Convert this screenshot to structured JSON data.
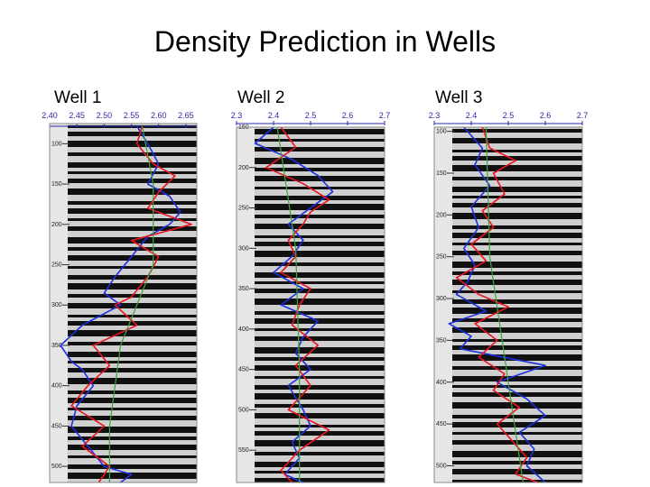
{
  "title": "Density Prediction in Wells",
  "colors": {
    "blue": "#1a2fe0",
    "red": "#e8141e",
    "green": "#3aa83a",
    "stripe_dark": "#111111",
    "stripe_light": "#cfcfcf",
    "axis": "#2a2aa8"
  },
  "chart_data": [
    {
      "type": "line",
      "title": "Well 1",
      "x_ticks": [
        "2.40",
        "2.45",
        "2.50",
        "2.55",
        "2.60",
        "2.65"
      ],
      "xlim": [
        2.4,
        2.67
      ],
      "depth_ticks": [
        "100",
        "150",
        "200",
        "250",
        "300",
        "350",
        "400",
        "450",
        "500"
      ],
      "ylim": [
        75,
        520
      ],
      "series": [
        {
          "color": "blue",
          "depth": [
            78,
            100,
            125,
            150,
            165,
            185,
            200,
            215,
            240,
            265,
            285,
            300,
            325,
            350,
            370,
            380,
            400,
            425,
            450,
            475,
            500,
            510,
            520
          ],
          "values": [
            2.56,
            2.58,
            2.6,
            2.58,
            2.62,
            2.64,
            2.62,
            2.58,
            2.55,
            2.52,
            2.5,
            2.53,
            2.46,
            2.42,
            2.44,
            2.46,
            2.48,
            2.45,
            2.44,
            2.47,
            2.5,
            2.55,
            2.53
          ]
        },
        {
          "color": "red",
          "depth": [
            78,
            100,
            125,
            140,
            160,
            180,
            200,
            220,
            240,
            265,
            290,
            300,
            325,
            350,
            375,
            400,
            425,
            450,
            475,
            500,
            520
          ],
          "values": [
            2.57,
            2.56,
            2.59,
            2.63,
            2.6,
            2.58,
            2.66,
            2.55,
            2.6,
            2.58,
            2.55,
            2.52,
            2.56,
            2.48,
            2.51,
            2.47,
            2.44,
            2.5,
            2.46,
            2.51,
            2.49
          ]
        },
        {
          "color": "green",
          "depth": [
            78,
            150,
            250,
            350,
            450,
            520
          ],
          "values": [
            2.57,
            2.59,
            2.59,
            2.53,
            2.51,
            2.51
          ]
        }
      ]
    },
    {
      "type": "line",
      "title": "Well 2",
      "x_ticks": [
        "2.3",
        "2.4",
        "2.5",
        "2.6",
        "2.7"
      ],
      "xlim": [
        2.3,
        2.7
      ],
      "depth_ticks": [
        "150",
        "200",
        "250",
        "300",
        "350",
        "400",
        "450",
        "500",
        "550"
      ],
      "ylim": [
        150,
        590
      ],
      "series": [
        {
          "color": "blue",
          "depth": [
            150,
            170,
            190,
            210,
            230,
            250,
            270,
            290,
            310,
            330,
            350,
            370,
            390,
            410,
            430,
            450,
            470,
            500,
            520,
            540,
            560,
            580,
            590
          ],
          "values": [
            2.4,
            2.35,
            2.45,
            2.52,
            2.56,
            2.5,
            2.44,
            2.48,
            2.45,
            2.4,
            2.48,
            2.42,
            2.52,
            2.48,
            2.46,
            2.5,
            2.44,
            2.48,
            2.5,
            2.45,
            2.47,
            2.43,
            2.48
          ]
        },
        {
          "color": "red",
          "depth": [
            150,
            175,
            200,
            220,
            240,
            255,
            270,
            290,
            310,
            330,
            350,
            370,
            395,
            420,
            445,
            470,
            500,
            525,
            550,
            575,
            590
          ],
          "values": [
            2.42,
            2.46,
            2.38,
            2.48,
            2.55,
            2.5,
            2.48,
            2.44,
            2.46,
            2.42,
            2.5,
            2.47,
            2.45,
            2.52,
            2.46,
            2.5,
            2.44,
            2.55,
            2.47,
            2.42,
            2.45
          ]
        },
        {
          "color": "green",
          "depth": [
            150,
            300,
            450,
            590
          ],
          "values": [
            2.41,
            2.46,
            2.47,
            2.47
          ]
        }
      ]
    },
    {
      "type": "line",
      "title": "Well 3",
      "x_ticks": [
        "2.3",
        "2.4",
        "2.5",
        "2.6",
        "2.7"
      ],
      "xlim": [
        2.3,
        2.7
      ],
      "depth_ticks": [
        "100",
        "150",
        "200",
        "250",
        "300",
        "350",
        "400",
        "450",
        "500"
      ],
      "ylim": [
        95,
        520
      ],
      "series": [
        {
          "color": "blue",
          "depth": [
            95,
            120,
            140,
            165,
            190,
            215,
            240,
            260,
            280,
            295,
            315,
            330,
            345,
            360,
            380,
            400,
            420,
            440,
            460,
            480,
            500,
            520
          ],
          "values": [
            2.38,
            2.43,
            2.41,
            2.45,
            2.4,
            2.42,
            2.38,
            2.41,
            2.39,
            2.36,
            2.44,
            2.34,
            2.4,
            2.37,
            2.6,
            2.47,
            2.55,
            2.6,
            2.53,
            2.57,
            2.55,
            2.6
          ]
        },
        {
          "color": "red",
          "depth": [
            95,
            120,
            135,
            150,
            175,
            195,
            215,
            235,
            255,
            275,
            295,
            310,
            330,
            350,
            370,
            390,
            410,
            430,
            450,
            470,
            490,
            510,
            520
          ],
          "values": [
            2.43,
            2.45,
            2.52,
            2.46,
            2.49,
            2.43,
            2.46,
            2.4,
            2.44,
            2.36,
            2.42,
            2.5,
            2.41,
            2.47,
            2.42,
            2.49,
            2.46,
            2.53,
            2.47,
            2.51,
            2.55,
            2.52,
            2.58
          ]
        },
        {
          "color": "green",
          "depth": [
            95,
            250,
            400,
            520
          ],
          "values": [
            2.44,
            2.45,
            2.5,
            2.54
          ]
        }
      ]
    }
  ]
}
